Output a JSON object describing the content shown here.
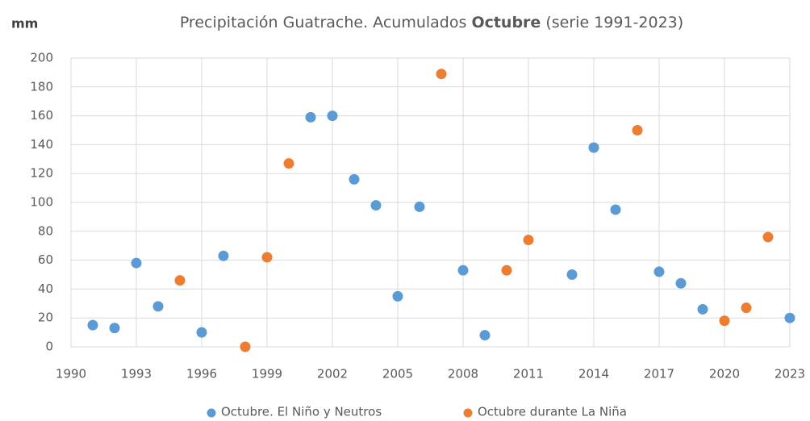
{
  "chart_data": {
    "type": "scatter",
    "title": [
      "Precipitación Guatrache. Acumulados ",
      "Octubre",
      " (serie 1991-2023)"
    ],
    "y_label": "mm",
    "xlim": [
      1990,
      2023
    ],
    "xticks": [
      1990,
      1993,
      1996,
      1999,
      2002,
      2005,
      2008,
      2011,
      2014,
      2017,
      2020,
      2023
    ],
    "ylim": [
      0,
      200
    ],
    "yticks": [
      0,
      20,
      40,
      60,
      80,
      100,
      120,
      140,
      160,
      180,
      200
    ],
    "grid": true,
    "legend": "bottom",
    "series": [
      {
        "name": "Octubre. El Niño y Neutros",
        "color": "#5b9bd5",
        "x": [
          1991,
          1992,
          1993,
          1994,
          1996,
          1997,
          2001,
          2002,
          2003,
          2004,
          2005,
          2006,
          2008,
          2009,
          2013,
          2014,
          2015,
          2017,
          2018,
          2019,
          2023
        ],
        "values": [
          15,
          13,
          58,
          28,
          10,
          63,
          159,
          160,
          116,
          98,
          35,
          97,
          53,
          8,
          50,
          138,
          95,
          52,
          44,
          26,
          20
        ]
      },
      {
        "name": "Octubre durante La Niña",
        "color": "#ed7d31",
        "x": [
          1995,
          1998,
          1999,
          2000,
          2007,
          2010,
          2011,
          2016,
          2020,
          2021,
          2022
        ],
        "values": [
          46,
          0,
          62,
          127,
          189,
          53,
          74,
          150,
          18,
          27,
          76
        ]
      }
    ]
  }
}
